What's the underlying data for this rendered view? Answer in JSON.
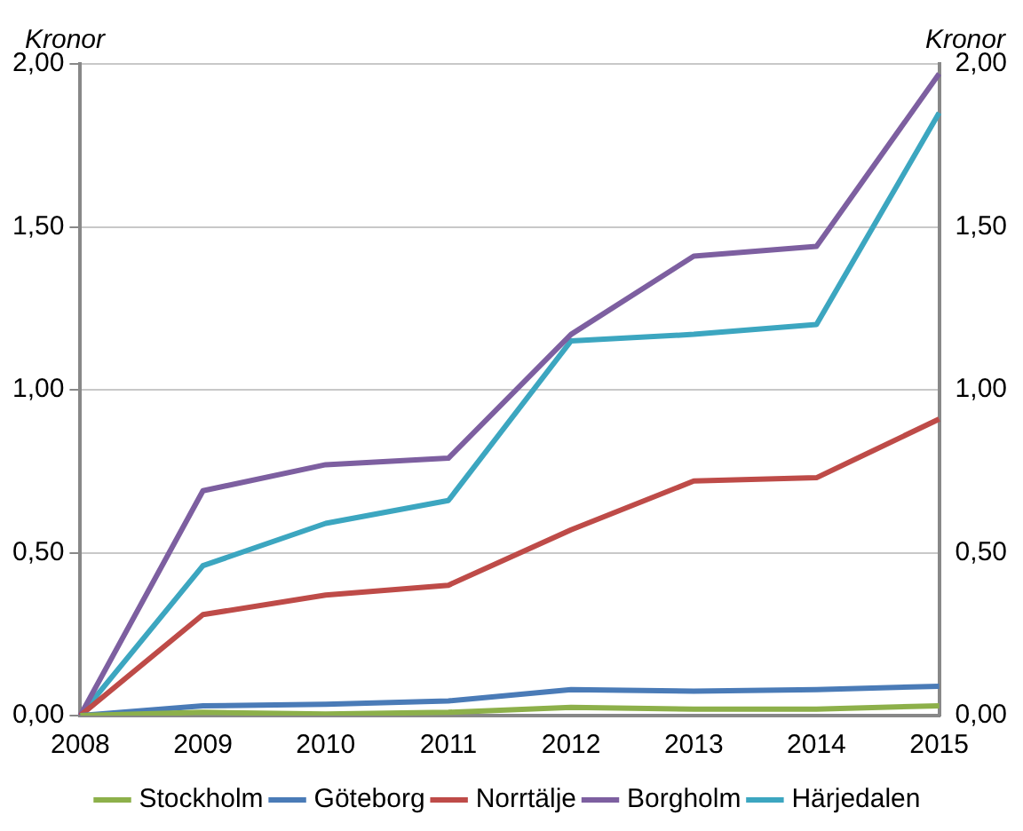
{
  "chart_data": {
    "type": "line",
    "ylabel": "Kronor",
    "y2label": "Kronor",
    "categories": [
      "2008",
      "2009",
      "2010",
      "2011",
      "2012",
      "2013",
      "2014",
      "2015"
    ],
    "series": [
      {
        "name": "Stockholm",
        "color": "#8db04a",
        "values": [
          0,
          0.01,
          0.005,
          0.01,
          0.025,
          0.02,
          0.02,
          0.03
        ]
      },
      {
        "name": "Göteborg",
        "color": "#4a7bb7",
        "values": [
          0,
          0.03,
          0.035,
          0.045,
          0.08,
          0.075,
          0.08,
          0.09
        ]
      },
      {
        "name": "Norrtälje",
        "color": "#be4b48",
        "values": [
          0,
          0.31,
          0.37,
          0.4,
          0.57,
          0.72,
          0.73,
          0.91
        ]
      },
      {
        "name": "Borgholm",
        "color": "#7d5fa0",
        "values": [
          0,
          0.69,
          0.77,
          0.79,
          1.17,
          1.41,
          1.44,
          1.97
        ]
      },
      {
        "name": "Härjedalen",
        "color": "#3ca6c0",
        "values": [
          0,
          0.46,
          0.59,
          0.66,
          1.15,
          1.17,
          1.2,
          1.85
        ]
      }
    ],
    "ylim": [
      0,
      2
    ],
    "yticks": [
      {
        "value": 0,
        "label": "0,00"
      },
      {
        "value": 0.5,
        "label": "0,50"
      },
      {
        "value": 1,
        "label": "1,00"
      },
      {
        "value": 1.5,
        "label": "1,50"
      },
      {
        "value": 2,
        "label": "2,00"
      }
    ],
    "y2lim": [
      0,
      2
    ],
    "y2ticks": [
      {
        "value": 0,
        "label": "0,00"
      },
      {
        "value": 0.5,
        "label": "0,50"
      },
      {
        "value": 1,
        "label": "1,00"
      },
      {
        "value": 1.5,
        "label": "1,50"
      },
      {
        "value": 2,
        "label": "2,00"
      }
    ],
    "grid": "y",
    "legend": "bottom",
    "marker": "none",
    "line_style": "solid"
  }
}
